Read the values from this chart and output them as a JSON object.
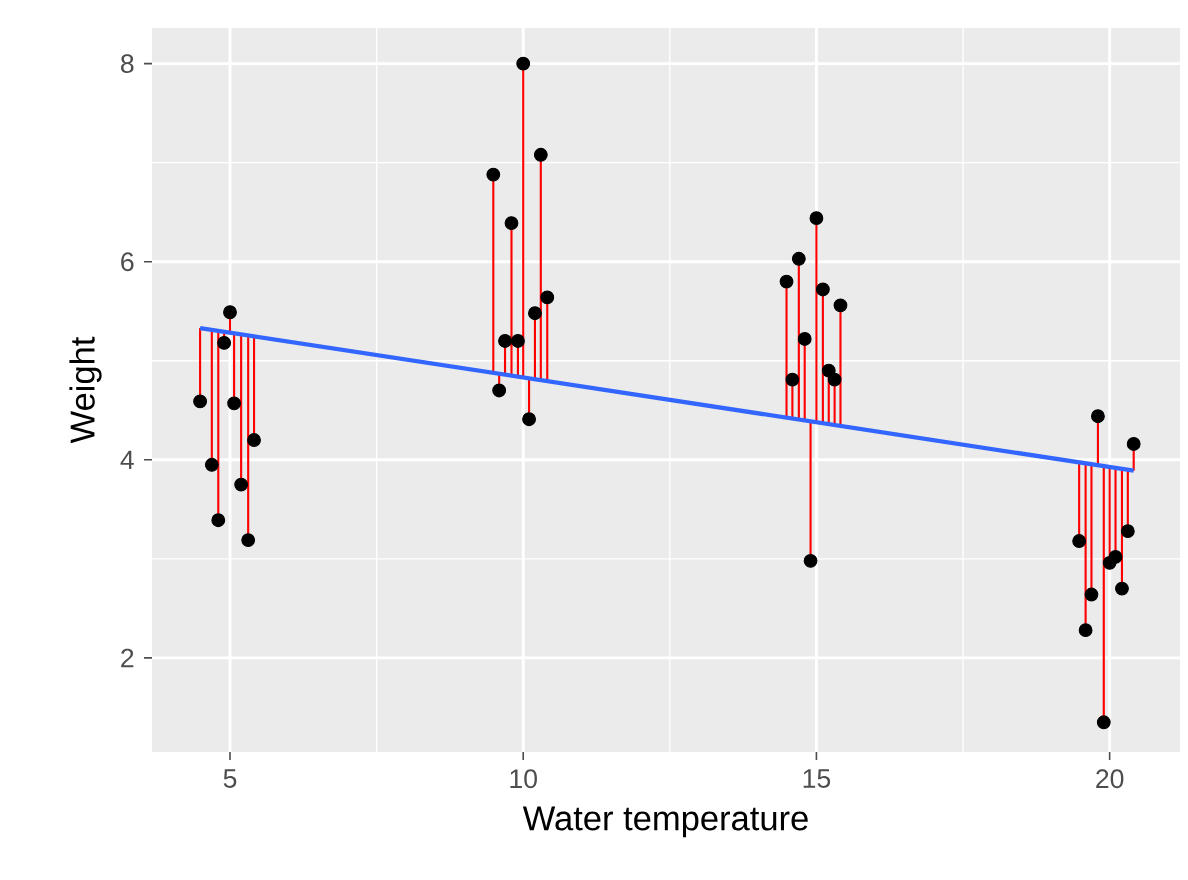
{
  "chart_data": {
    "type": "scatter",
    "xlabel": "Water temperature",
    "ylabel": "Weight",
    "xlim": [
      3.67,
      21.2
    ],
    "ylim": [
      1.05,
      8.36
    ],
    "xticks": [
      5,
      10,
      15,
      20
    ],
    "yticks": [
      2,
      4,
      6,
      8
    ],
    "grid": true,
    "series": [
      {
        "type": "scatter",
        "marker": "circle",
        "color": "#000000",
        "x": [
          4.49,
          4.69,
          4.8,
          4.9,
          5.0,
          5.07,
          5.19,
          5.31,
          5.41,
          9.49,
          9.59,
          9.69,
          9.8,
          9.91,
          10.0,
          10.1,
          10.2,
          10.3,
          10.41,
          14.49,
          14.59,
          14.7,
          14.8,
          14.9,
          15.0,
          15.11,
          15.21,
          15.31,
          15.41,
          19.48,
          19.59,
          19.69,
          19.8,
          19.9,
          20.0,
          20.1,
          20.21,
          20.31,
          20.41
        ],
        "values": [
          4.59,
          3.95,
          3.39,
          5.18,
          5.49,
          4.57,
          3.75,
          3.19,
          4.2,
          6.88,
          4.7,
          5.2,
          6.39,
          5.2,
          8.0,
          4.41,
          5.48,
          7.08,
          5.64,
          5.8,
          4.81,
          6.03,
          5.22,
          2.98,
          6.44,
          5.72,
          4.9,
          4.81,
          5.56,
          3.18,
          2.28,
          2.64,
          4.44,
          1.35,
          2.96,
          3.02,
          2.7,
          3.28,
          4.16
        ],
        "errors": [
          [
            4.59,
            5.33
          ],
          [
            3.95,
            5.31
          ],
          [
            3.39,
            5.3
          ],
          [
            5.18,
            5.29
          ],
          [
            5.28,
            5.49
          ],
          [
            4.57,
            5.28
          ],
          [
            3.75,
            5.27
          ],
          [
            3.19,
            5.26
          ],
          [
            4.2,
            5.25
          ],
          [
            4.88,
            6.88
          ],
          [
            4.7,
            4.87
          ],
          [
            4.86,
            5.2
          ],
          [
            4.85,
            6.39
          ],
          [
            4.84,
            5.2
          ],
          [
            4.83,
            8.0
          ],
          [
            4.41,
            4.82
          ],
          [
            4.81,
            5.48
          ],
          [
            4.8,
            7.08
          ],
          [
            4.79,
            5.64
          ],
          [
            4.43,
            5.8
          ],
          [
            4.42,
            4.81
          ],
          [
            4.41,
            6.03
          ],
          [
            4.4,
            5.22
          ],
          [
            2.98,
            4.39
          ],
          [
            4.38,
            6.44
          ],
          [
            4.37,
            5.72
          ],
          [
            4.36,
            4.9
          ],
          [
            4.35,
            4.81
          ],
          [
            4.34,
            5.56
          ],
          [
            3.18,
            3.97
          ],
          [
            2.28,
            3.96
          ],
          [
            2.64,
            3.95
          ],
          [
            3.94,
            4.44
          ],
          [
            1.35,
            3.94
          ],
          [
            2.96,
            3.93
          ],
          [
            3.02,
            3.92
          ],
          [
            2.7,
            3.91
          ],
          [
            3.28,
            3.9
          ],
          [
            3.89,
            4.16
          ]
        ]
      },
      {
        "type": "line",
        "color": "#3366ff",
        "x": [
          4.49,
          20.41
        ],
        "values": [
          5.33,
          3.89
        ]
      }
    ]
  }
}
